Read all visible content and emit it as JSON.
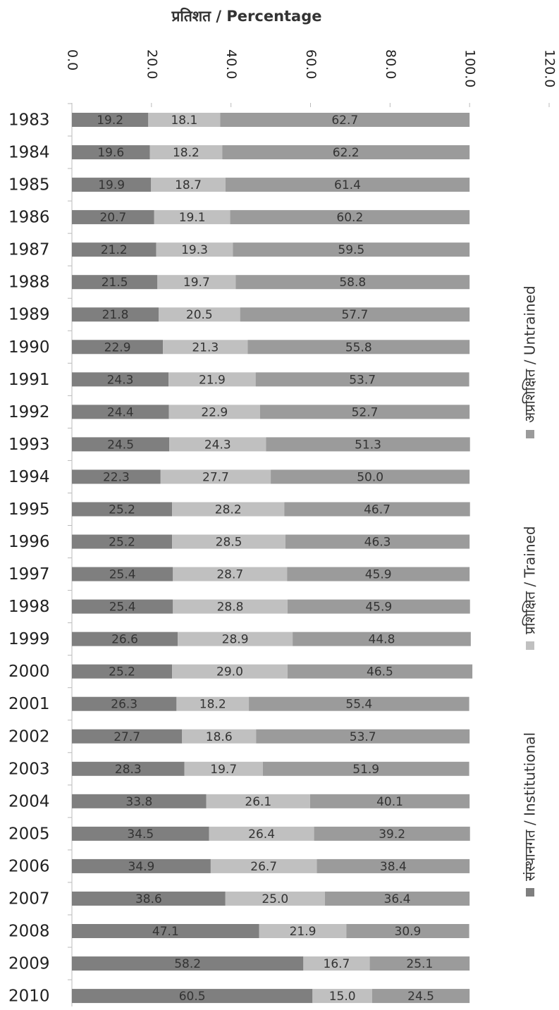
{
  "chart_data": {
    "type": "stacked_bar",
    "orientation": "horizontal",
    "title": "प्रतिशत / Percentage",
    "categories": [
      "1983",
      "1984",
      "1985",
      "1986",
      "1987",
      "1988",
      "1989",
      "1990",
      "1991",
      "1992",
      "1993",
      "1994",
      "1995",
      "1996",
      "1997",
      "1998",
      "1999",
      "2000",
      "2001",
      "2002",
      "2003",
      "2004",
      "2005",
      "2006",
      "2007",
      "2008",
      "2009",
      "2010"
    ],
    "series": [
      {
        "name": "संस्थानगत / Institutional",
        "color": "#7f7f7f",
        "values": [
          19.2,
          19.6,
          19.9,
          20.7,
          21.2,
          21.5,
          21.8,
          22.9,
          24.3,
          24.4,
          24.5,
          22.3,
          25.2,
          25.2,
          25.4,
          25.4,
          26.6,
          25.2,
          26.3,
          27.7,
          28.3,
          33.8,
          34.5,
          34.9,
          38.6,
          47.1,
          58.2,
          60.5
        ],
        "value_labels": [
          "19.2",
          "19.6",
          "19.9",
          "20.7",
          "21.2",
          "21.5",
          "21.8",
          "22.9",
          "24.3",
          "24.4",
          "24.5",
          "22.3",
          "25.2",
          "25.2",
          "25.4",
          "25.4",
          "26.6",
          "25.2",
          "26.3",
          "27.7",
          "28.3",
          "33.8",
          "34.5",
          "34.9",
          "38.6",
          "47.1",
          "58.2",
          "60.5"
        ]
      },
      {
        "name": "प्रशिक्षित / Trained",
        "color": "#c0c0c0",
        "values": [
          18.1,
          18.2,
          18.7,
          19.1,
          19.3,
          19.7,
          20.5,
          21.3,
          21.9,
          22.9,
          24.3,
          27.7,
          28.2,
          28.5,
          28.7,
          28.8,
          28.9,
          29.0,
          18.2,
          18.6,
          19.7,
          26.1,
          26.4,
          26.7,
          25.0,
          21.9,
          16.7,
          15.0
        ],
        "value_labels": [
          "18.1",
          "18.2",
          "18.7",
          "19.1",
          "19.3",
          "19.7",
          "20.5",
          "21.3",
          "21.9",
          "22.9",
          "24.3",
          "27.7",
          "28.2",
          "28.5",
          "28.7",
          "28.8",
          "28.9",
          "29.0",
          "18.2",
          "18.6",
          "19.7",
          "26.1",
          "26.4",
          "26.7",
          "25.0",
          "21.9",
          "16.7",
          "15.0"
        ]
      },
      {
        "name": "अप्रशिक्षित / Untrained",
        "color": "#9b9b9b",
        "values": [
          62.7,
          62.2,
          61.4,
          60.2,
          59.5,
          58.8,
          57.7,
          55.8,
          53.7,
          52.7,
          51.3,
          50.0,
          46.7,
          46.3,
          45.9,
          45.9,
          44.8,
          46.5,
          55.4,
          53.7,
          51.9,
          40.1,
          39.2,
          38.4,
          36.4,
          30.9,
          25.1,
          24.5
        ],
        "value_labels": [
          "62.7",
          "62.2",
          "61.4",
          "60.2",
          "59.5",
          "58.8",
          "57.7",
          "55.8",
          "53.7",
          "52.7",
          "51.3",
          "50.0",
          "46.7",
          "46.3",
          "45.9",
          "45.9",
          "44.8",
          "46.5",
          "55.4",
          "53.7",
          "51.9",
          "40.1",
          "39.2",
          "38.4",
          "36.4",
          "30.9",
          "25.1",
          "24.5"
        ]
      }
    ],
    "xlim": [
      0,
      120
    ],
    "xticks": [
      {
        "value": 0,
        "label": "0.0"
      },
      {
        "value": 20,
        "label": "20.0"
      },
      {
        "value": 40,
        "label": "40.0"
      },
      {
        "value": 60,
        "label": "60.0"
      },
      {
        "value": 80,
        "label": "80.0"
      },
      {
        "value": 100,
        "label": "100.0"
      },
      {
        "value": 120,
        "label": "120.0"
      }
    ],
    "legend": "right"
  }
}
